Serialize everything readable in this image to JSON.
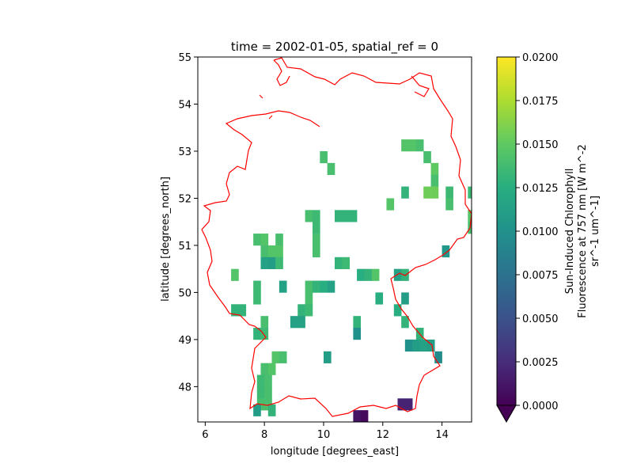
{
  "chart_data": {
    "type": "heatmap",
    "title": "time = 2002-01-05, spatial_ref = 0",
    "xlabel": "longitude [degrees_east]",
    "ylabel": "latitude [degrees_north]",
    "xlim": [
      5.75,
      15.0
    ],
    "ylim": [
      47.25,
      55.0
    ],
    "xticks": [
      6,
      8,
      10,
      12,
      14
    ],
    "yticks": [
      48,
      49,
      50,
      51,
      52,
      53,
      54,
      55
    ],
    "xtick_labels": [
      "6",
      "8",
      "10",
      "12",
      "14"
    ],
    "ytick_labels": [
      "48",
      "49",
      "50",
      "51",
      "52",
      "53",
      "54",
      "55"
    ],
    "grid": false,
    "boundary_color": "#ff0000",
    "colormap": "viridis",
    "colorbar": {
      "label_lines": [
        "Sun-Induced Chlorophyll",
        "Fluorescence at 757 nm [W m^-2",
        "sr^-1 um^-1]"
      ],
      "min": 0.0,
      "max": 0.02,
      "extend": "min",
      "ticks": [
        0.0,
        0.0025,
        0.005,
        0.0075,
        0.01,
        0.0125,
        0.015,
        0.0175,
        0.02
      ],
      "tick_labels": [
        "0.0000",
        "0.0025",
        "0.0050",
        "0.0075",
        "0.0100",
        "0.0125",
        "0.0150",
        "0.0175",
        "0.0200"
      ]
    },
    "cell_size": [
      0.25,
      0.25
    ],
    "cells": [
      [
        12.75,
        53.125,
        0.0145
      ],
      [
        13.0,
        53.125,
        0.0145
      ],
      [
        13.25,
        53.125,
        0.014
      ],
      [
        13.5,
        52.875,
        0.014
      ],
      [
        13.75,
        52.625,
        0.015
      ],
      [
        13.75,
        52.375,
        0.014
      ],
      [
        13.5,
        52.125,
        0.0155
      ],
      [
        13.75,
        52.125,
        0.0155
      ],
      [
        14.25,
        52.125,
        0.0135
      ],
      [
        14.25,
        51.875,
        0.014
      ],
      [
        15.0,
        52.125,
        0.0135
      ],
      [
        12.75,
        52.125,
        0.013
      ],
      [
        12.25,
        51.875,
        0.0145
      ],
      [
        10.0,
        52.875,
        0.014
      ],
      [
        10.25,
        52.625,
        0.014
      ],
      [
        15.0,
        51.625,
        0.0145
      ],
      [
        15.0,
        51.375,
        0.014
      ],
      [
        14.125,
        50.875,
        0.0105
      ],
      [
        9.5,
        51.625,
        0.014
      ],
      [
        9.75,
        51.625,
        0.0135
      ],
      [
        9.75,
        51.375,
        0.0135
      ],
      [
        10.5,
        51.625,
        0.013
      ],
      [
        10.75,
        51.625,
        0.013
      ],
      [
        11.0,
        51.625,
        0.013
      ],
      [
        7.75,
        51.125,
        0.014
      ],
      [
        8.0,
        51.125,
        0.0145
      ],
      [
        8.5,
        51.125,
        0.014
      ],
      [
        8.0,
        50.875,
        0.014
      ],
      [
        8.25,
        50.875,
        0.0145
      ],
      [
        8.5,
        50.875,
        0.0145
      ],
      [
        9.75,
        51.125,
        0.014
      ],
      [
        9.75,
        50.875,
        0.014
      ],
      [
        8.0,
        50.625,
        0.0115
      ],
      [
        8.25,
        50.625,
        0.011
      ],
      [
        8.5,
        50.625,
        0.0135
      ],
      [
        10.5,
        50.625,
        0.013
      ],
      [
        10.75,
        50.625,
        0.0135
      ],
      [
        7.0,
        50.375,
        0.0145
      ],
      [
        11.25,
        50.375,
        0.0125
      ],
      [
        11.5,
        50.375,
        0.013
      ],
      [
        11.75,
        50.375,
        0.0145
      ],
      [
        12.5,
        50.375,
        0.0115
      ],
      [
        12.75,
        50.375,
        0.013
      ],
      [
        7.75,
        50.125,
        0.0135
      ],
      [
        8.625,
        50.125,
        0.0115
      ],
      [
        9.5,
        50.125,
        0.014
      ],
      [
        9.75,
        50.125,
        0.013
      ],
      [
        10.0,
        50.125,
        0.0125
      ],
      [
        10.25,
        50.125,
        0.0115
      ],
      [
        7.75,
        49.875,
        0.0135
      ],
      [
        9.5,
        49.875,
        0.014
      ],
      [
        11.875,
        49.875,
        0.0125
      ],
      [
        12.75,
        49.875,
        0.011
      ],
      [
        7.0,
        49.625,
        0.013
      ],
      [
        7.25,
        49.625,
        0.013
      ],
      [
        9.25,
        49.625,
        0.013
      ],
      [
        9.5,
        49.625,
        0.0135
      ],
      [
        12.5,
        49.625,
        0.0125
      ],
      [
        8.0,
        49.375,
        0.014
      ],
      [
        9.0,
        49.375,
        0.0115
      ],
      [
        9.25,
        49.375,
        0.0115
      ],
      [
        11.125,
        49.375,
        0.013
      ],
      [
        12.75,
        49.375,
        0.013
      ],
      [
        7.75,
        49.125,
        0.013
      ],
      [
        8.0,
        49.125,
        0.0135
      ],
      [
        11.125,
        49.125,
        0.01
      ],
      [
        13.25,
        49.125,
        0.013
      ],
      [
        12.875,
        48.875,
        0.01
      ],
      [
        13.125,
        48.875,
        0.011
      ],
      [
        13.375,
        48.875,
        0.0115
      ],
      [
        13.625,
        48.875,
        0.011
      ],
      [
        8.375,
        48.625,
        0.0145
      ],
      [
        8.625,
        48.625,
        0.014
      ],
      [
        10.125,
        48.625,
        0.011
      ],
      [
        13.875,
        48.625,
        0.0095
      ],
      [
        8.0,
        48.375,
        0.014
      ],
      [
        8.25,
        48.375,
        0.0145
      ],
      [
        7.875,
        48.125,
        0.0135
      ],
      [
        8.125,
        48.125,
        0.014
      ],
      [
        7.875,
        47.875,
        0.0135
      ],
      [
        8.125,
        47.875,
        0.014
      ],
      [
        7.875,
        47.625,
        0.014
      ],
      [
        8.125,
        47.625,
        0.014
      ],
      [
        7.75,
        47.5,
        0.011
      ],
      [
        8.25,
        47.5,
        0.013
      ],
      [
        11.125,
        47.375,
        0.001
      ],
      [
        11.375,
        47.375,
        0.0005
      ],
      [
        12.625,
        47.625,
        0.002
      ],
      [
        12.875,
        47.625,
        0.002
      ]
    ]
  }
}
